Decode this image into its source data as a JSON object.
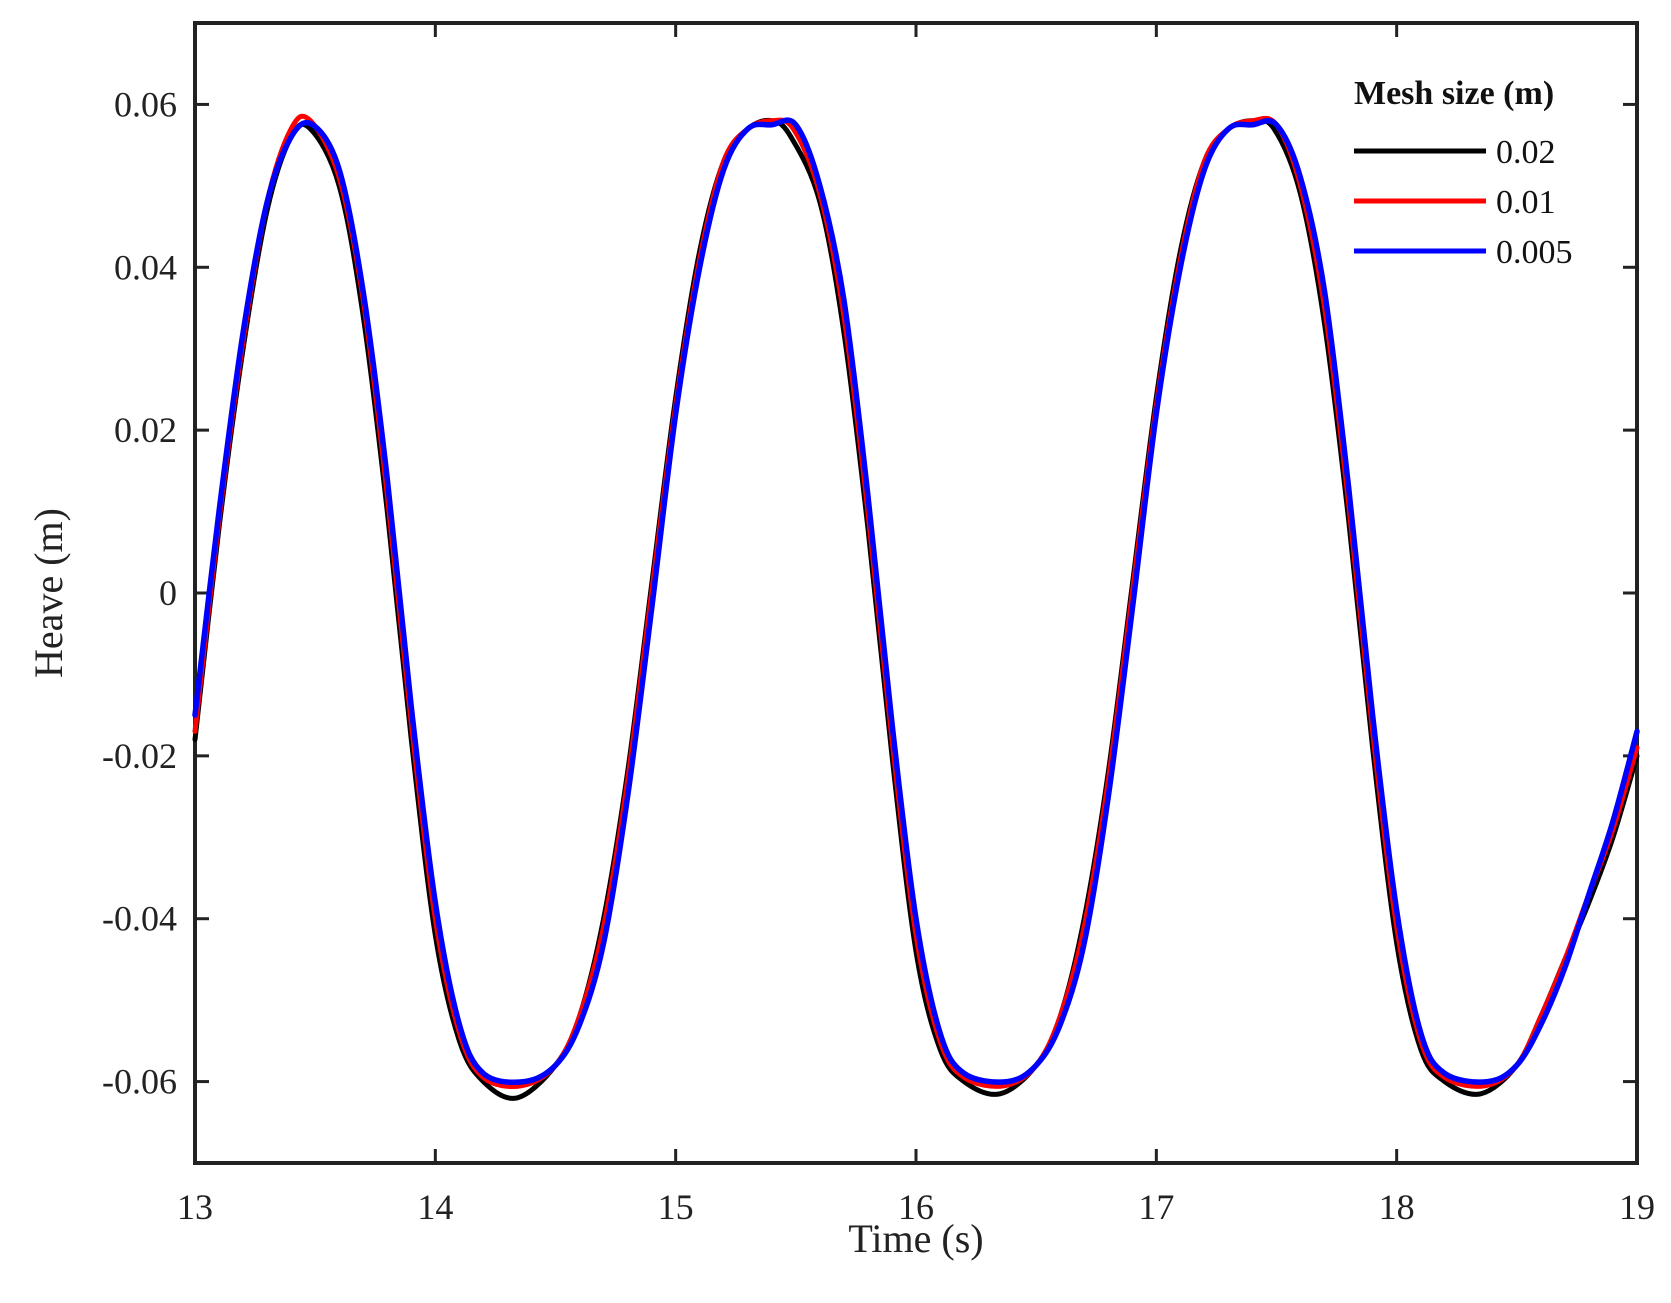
{
  "chart_data": {
    "type": "line",
    "title": "",
    "xlabel": "Time (s)",
    "ylabel": "Heave (m)",
    "xlim": [
      13,
      19
    ],
    "ylim": [
      -0.07,
      0.07
    ],
    "xticks": [
      13,
      14,
      15,
      16,
      17,
      18,
      19
    ],
    "xtick_labels": [
      "13",
      "14",
      "15",
      "16",
      "17",
      "18",
      "19"
    ],
    "yticks": [
      -0.06,
      -0.04,
      -0.02,
      0,
      0.02,
      0.04,
      0.06
    ],
    "ytick_labels": [
      "-0.06",
      "-0.04",
      "-0.02",
      "0",
      "0.02",
      "0.04",
      "0.06"
    ],
    "grid": false,
    "legend": {
      "title": "Mesh size (m)",
      "position": "top-right"
    },
    "series": [
      {
        "name": "0.02",
        "color": "#000000",
        "x": [
          13.0,
          13.1,
          13.2,
          13.3,
          13.4,
          13.48,
          13.6,
          13.7,
          13.8,
          13.9,
          14.0,
          14.1,
          14.2,
          14.34,
          14.5,
          14.6,
          14.7,
          14.8,
          14.9,
          15.0,
          15.1,
          15.2,
          15.3,
          15.4,
          15.48,
          15.6,
          15.7,
          15.8,
          15.9,
          16.0,
          16.1,
          16.2,
          16.35,
          16.5,
          16.6,
          16.7,
          16.8,
          16.9,
          17.0,
          17.1,
          17.2,
          17.3,
          17.4,
          17.49,
          17.6,
          17.7,
          17.8,
          17.9,
          18.0,
          18.1,
          18.2,
          18.35,
          18.5,
          18.6,
          18.7,
          18.8,
          18.9,
          19.0
        ],
        "y": [
          -0.018,
          0.008,
          0.03,
          0.047,
          0.056,
          0.057,
          0.05,
          0.034,
          0.01,
          -0.018,
          -0.042,
          -0.055,
          -0.06,
          -0.062,
          -0.058,
          -0.052,
          -0.04,
          -0.022,
          0.001,
          0.024,
          0.042,
          0.053,
          0.057,
          0.058,
          0.056,
          0.048,
          0.032,
          0.008,
          -0.02,
          -0.044,
          -0.056,
          -0.06,
          -0.0615,
          -0.058,
          -0.052,
          -0.04,
          -0.022,
          0.001,
          0.024,
          0.042,
          0.053,
          0.057,
          0.058,
          0.057,
          0.049,
          0.033,
          0.009,
          -0.019,
          -0.043,
          -0.056,
          -0.06,
          -0.0615,
          -0.058,
          -0.052,
          -0.045,
          -0.038,
          -0.03,
          -0.02
        ]
      },
      {
        "name": "0.01",
        "color": "#ff0000",
        "x": [
          13.0,
          13.1,
          13.2,
          13.3,
          13.4,
          13.48,
          13.6,
          13.7,
          13.8,
          13.9,
          14.0,
          14.1,
          14.2,
          14.36,
          14.5,
          14.6,
          14.7,
          14.8,
          14.9,
          15.0,
          15.1,
          15.2,
          15.3,
          15.4,
          15.49,
          15.6,
          15.7,
          15.8,
          15.9,
          16.0,
          16.1,
          16.2,
          16.37,
          16.5,
          16.6,
          16.7,
          16.8,
          16.9,
          17.0,
          17.1,
          17.2,
          17.3,
          17.4,
          17.5,
          17.6,
          17.7,
          17.8,
          17.9,
          18.0,
          18.1,
          18.2,
          18.37,
          18.5,
          18.6,
          18.7,
          18.8,
          18.9,
          19.0
        ],
        "y": [
          -0.017,
          0.009,
          0.031,
          0.048,
          0.057,
          0.058,
          0.051,
          0.036,
          0.012,
          -0.016,
          -0.04,
          -0.054,
          -0.0595,
          -0.0605,
          -0.058,
          -0.052,
          -0.041,
          -0.023,
          0.0,
          0.023,
          0.041,
          0.053,
          0.057,
          0.058,
          0.057,
          0.049,
          0.034,
          0.01,
          -0.018,
          -0.042,
          -0.055,
          -0.0595,
          -0.0605,
          -0.058,
          -0.052,
          -0.041,
          -0.023,
          0.0,
          0.023,
          0.041,
          0.053,
          0.057,
          0.058,
          0.0575,
          0.05,
          0.035,
          0.011,
          -0.017,
          -0.041,
          -0.055,
          -0.0595,
          -0.0605,
          -0.058,
          -0.052,
          -0.045,
          -0.037,
          -0.029,
          -0.019
        ]
      },
      {
        "name": "0.005",
        "color": "#0000ff",
        "x": [
          13.0,
          13.1,
          13.2,
          13.3,
          13.4,
          13.49,
          13.6,
          13.7,
          13.8,
          13.9,
          14.0,
          14.1,
          14.2,
          14.37,
          14.5,
          14.6,
          14.7,
          14.8,
          14.9,
          15.0,
          15.1,
          15.2,
          15.3,
          15.4,
          15.5,
          15.6,
          15.7,
          15.8,
          15.9,
          16.0,
          16.1,
          16.2,
          16.38,
          16.5,
          16.6,
          16.7,
          16.8,
          16.9,
          17.0,
          17.1,
          17.2,
          17.3,
          17.4,
          17.5,
          17.6,
          17.7,
          17.8,
          17.9,
          18.0,
          18.1,
          18.2,
          18.38,
          18.5,
          18.6,
          18.7,
          18.8,
          18.9,
          19.0
        ],
        "y": [
          -0.015,
          0.01,
          0.032,
          0.048,
          0.056,
          0.0575,
          0.052,
          0.037,
          0.014,
          -0.014,
          -0.038,
          -0.053,
          -0.059,
          -0.06,
          -0.058,
          -0.053,
          -0.043,
          -0.025,
          -0.002,
          0.022,
          0.04,
          0.052,
          0.057,
          0.0575,
          0.0575,
          0.05,
          0.036,
          0.012,
          -0.016,
          -0.04,
          -0.054,
          -0.059,
          -0.06,
          -0.058,
          -0.053,
          -0.043,
          -0.025,
          -0.002,
          0.022,
          0.04,
          0.052,
          0.057,
          0.0575,
          0.0575,
          0.051,
          0.037,
          0.013,
          -0.015,
          -0.039,
          -0.054,
          -0.059,
          -0.06,
          -0.058,
          -0.053,
          -0.046,
          -0.037,
          -0.028,
          -0.017
        ]
      }
    ]
  }
}
